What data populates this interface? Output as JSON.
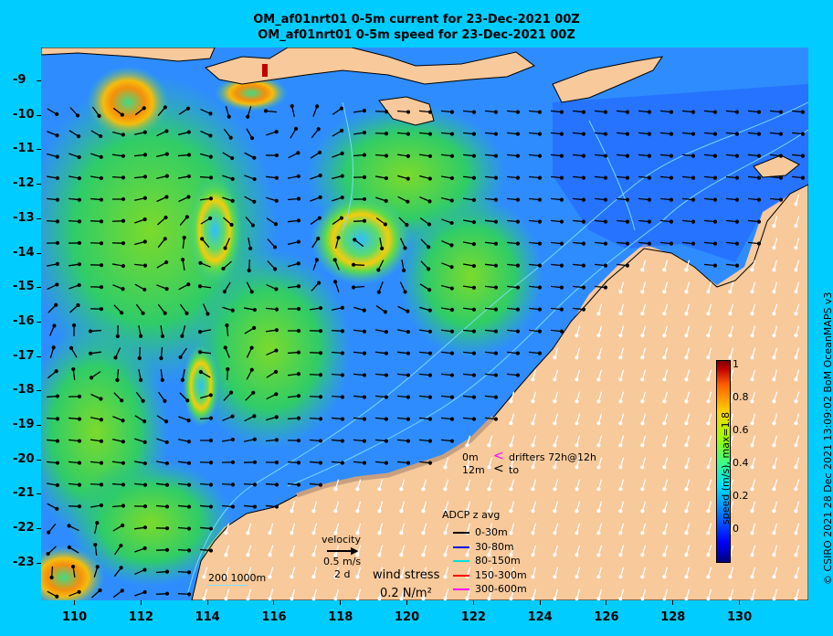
{
  "title_line1": "OM_af01nrt01 0-5m current for 23-Dec-2021 00Z",
  "title_line2": "OM_af01nrt01 0-5m speed for 23-Dec-2021 00Z",
  "lat_labels": [
    "-9",
    "-10",
    "-11",
    "-12",
    "-13",
    "-14",
    "-15",
    "-16",
    "-17",
    "-18",
    "-19",
    "-20",
    "-21",
    "-22",
    "-23"
  ],
  "lon_labels": [
    "110",
    "112",
    "114",
    "116",
    "118",
    "120",
    "122",
    "124",
    "126",
    "128",
    "130"
  ],
  "colorbar": {
    "ticks": [
      "1",
      "0.8",
      "0.6",
      "0.4",
      "0.2",
      "0"
    ],
    "title": "speed (m/s), max=1.8"
  },
  "copyright": "© CSIRO 2021  28 Dec 2021 13:09:02 BoM OceanMAPS v3",
  "drifters": {
    "row1_depth": "0m",
    "row1_text": "drifters 72h@12h",
    "row2_depth": "12m",
    "row2_text": "to",
    "row1_color": "#ff00ff",
    "row2_color": "#000000"
  },
  "adcp": {
    "title": "ADCP z avg",
    "items": [
      {
        "label": "0-30m",
        "color": "#000000"
      },
      {
        "label": "30-80m",
        "color": "#0000ff"
      },
      {
        "label": "80-150m",
        "color": "#00e0e0"
      },
      {
        "label": "150-300m",
        "color": "#ff0000"
      },
      {
        "label": "300-600m",
        "color": "#ff00ff"
      }
    ]
  },
  "velocity": {
    "title": "velocity",
    "value": "0.5 m/s",
    "time": "2 d"
  },
  "wind": {
    "title": "wind stress",
    "value": "0.2 N/m²"
  },
  "depth_scale": "200  1000m"
}
